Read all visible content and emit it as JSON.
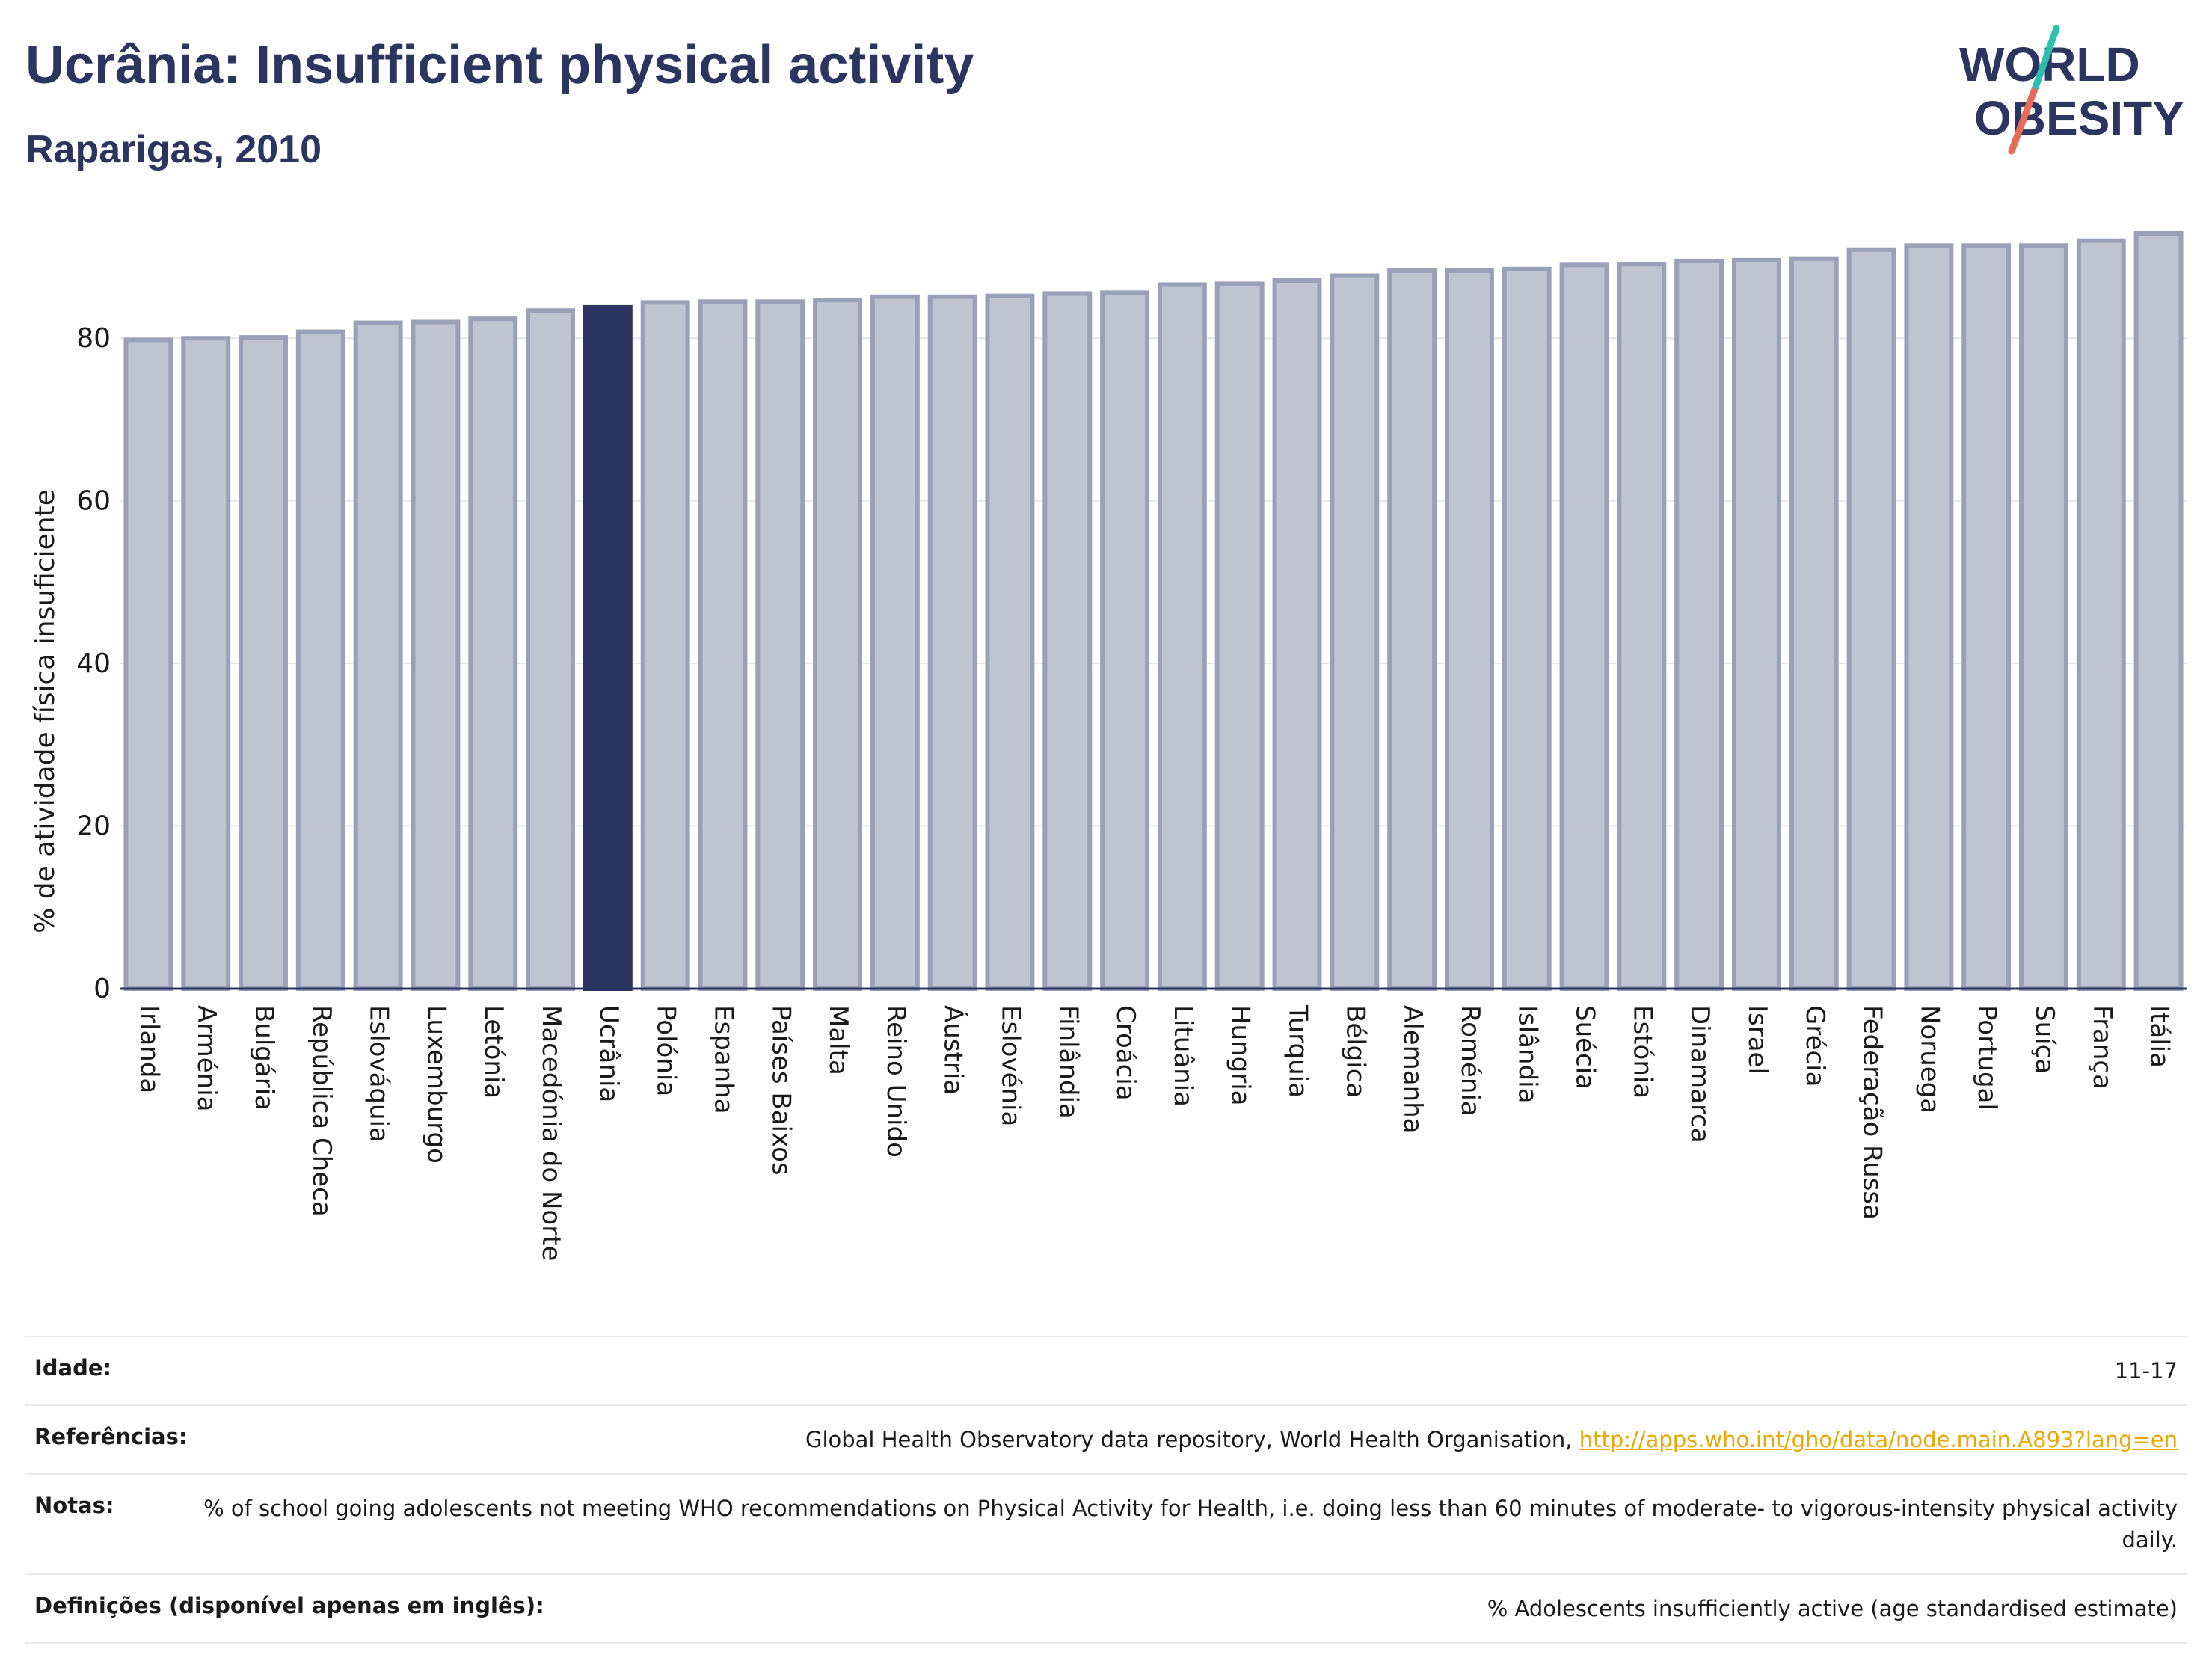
{
  "header": {
    "title": "Ucrânia: Insufficient physical activity",
    "subtitle": "Raparigas, 2010"
  },
  "logo": {
    "line1": "WORLD",
    "line2": "OBESITY"
  },
  "colors": {
    "bar": "#c0c3d0",
    "bar_border": "#9aa0b8",
    "highlight": "#2a3560",
    "text": "#2a3560",
    "link": "#e8a800",
    "logo_teal": "#2bbfb0",
    "logo_coral": "#e86a5a"
  },
  "chart_data": {
    "type": "bar",
    "title": "Ucrânia: Insufficient physical activity",
    "subtitle": "Raparigas, 2010",
    "xlabel": "",
    "ylabel": "% de atividade física insuficiente",
    "ylim": [
      0,
      94
    ],
    "yticks": [
      0,
      20,
      40,
      60,
      80
    ],
    "grid": true,
    "highlight": "Ucrânia",
    "categories": [
      "Irlanda",
      "Arménia",
      "Bulgária",
      "República Checa",
      "Eslováquia",
      "Luxemburgo",
      "Letónia",
      "Macedónia do Norte",
      "Ucrânia",
      "Polónia",
      "Espanha",
      "Países Baixos",
      "Malta",
      "Reino Unido",
      "Áustria",
      "Eslovénia",
      "Finlândia",
      "Croácia",
      "Lituânia",
      "Hungria",
      "Turquia",
      "Bélgica",
      "Alemanha",
      "Roménia",
      "Islândia",
      "Suécia",
      "Estónia",
      "Dinamarca",
      "Israel",
      "Grécia",
      "Federação Russa",
      "Noruega",
      "Portugal",
      "Suíça",
      "França",
      "Itália"
    ],
    "values": [
      79.8,
      80.0,
      80.1,
      80.8,
      81.9,
      82.0,
      82.4,
      83.4,
      83.8,
      84.4,
      84.5,
      84.5,
      84.7,
      85.1,
      85.1,
      85.2,
      85.5,
      85.6,
      86.6,
      86.7,
      87.1,
      87.7,
      88.3,
      88.3,
      88.5,
      89.0,
      89.1,
      89.5,
      89.6,
      89.8,
      90.9,
      91.4,
      91.4,
      91.4,
      92.0,
      92.9
    ]
  },
  "meta": [
    {
      "label": "Idade:",
      "value": "11-17"
    },
    {
      "label": "Referências:",
      "value": "Global Health Observatory data repository, World Health Organisation, ",
      "link": "http://apps.who.int/gho/data/node.main.A893?lang=en"
    },
    {
      "label": "Notas:",
      "value": "% of school going adolescents not meeting WHO recommendations on Physical Activity for Health, i.e. doing less than 60 minutes of moderate- to vigorous-intensity physical activity daily."
    },
    {
      "label": "Definições (disponível apenas em inglês):",
      "value": "% Adolescents insufficiently active (age standardised estimate)"
    }
  ]
}
